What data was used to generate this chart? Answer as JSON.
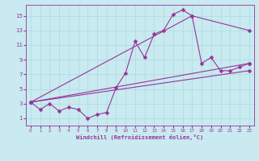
{
  "bg_color": "#c8eaf0",
  "line_color": "#993399",
  "marker": "D",
  "markersize": 2.5,
  "linewidth": 0.8,
  "xlabel": "Windchill (Refroidissement éolien,°C)",
  "ylabel_ticks": [
    1,
    3,
    5,
    7,
    9,
    11,
    13,
    15
  ],
  "xlim": [
    -0.5,
    23.5
  ],
  "ylim": [
    0.0,
    16.5
  ],
  "xticks": [
    0,
    1,
    2,
    3,
    4,
    5,
    6,
    7,
    8,
    9,
    10,
    11,
    12,
    13,
    14,
    15,
    16,
    17,
    18,
    19,
    20,
    21,
    22,
    23
  ],
  "grid_color": "#aadddd",
  "series1_x": [
    0,
    1,
    2,
    3,
    4,
    5,
    6,
    7,
    8,
    9,
    10,
    11,
    12,
    13,
    14,
    15,
    16,
    17,
    18,
    19,
    20,
    21,
    22,
    23
  ],
  "series1_y": [
    3.2,
    2.2,
    3.0,
    2.0,
    2.5,
    2.2,
    1.0,
    1.5,
    1.8,
    5.2,
    7.2,
    11.5,
    9.3,
    12.5,
    13.0,
    15.2,
    15.8,
    15.0,
    8.5,
    9.3,
    7.5,
    7.5,
    8.0,
    8.5
  ],
  "series2_x": [
    0,
    23
  ],
  "series2_y": [
    3.2,
    8.5
  ],
  "series3_x": [
    0,
    17,
    23
  ],
  "series3_y": [
    3.2,
    15.0,
    13.0
  ],
  "series4_x": [
    0,
    23
  ],
  "series4_y": [
    3.2,
    7.5
  ]
}
